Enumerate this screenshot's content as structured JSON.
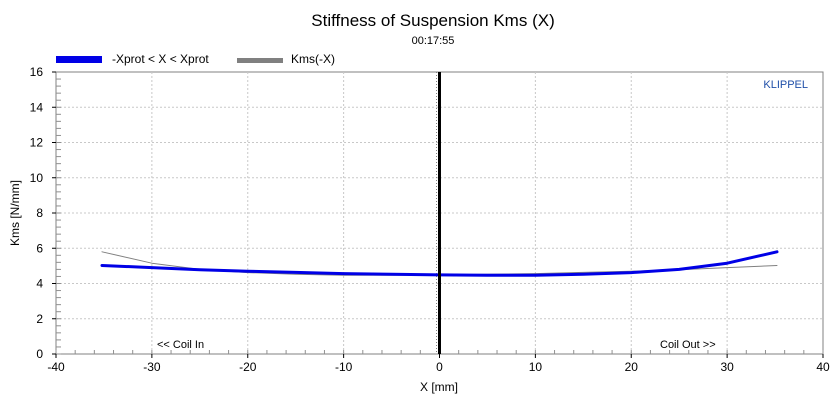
{
  "chart_data": {
    "type": "line",
    "title": "Stiffness of Suspension Kms (X)",
    "subtitle": "00:17:55",
    "xlabel": "X [mm]",
    "ylabel": "Kms [N/mm]",
    "xlim": [
      -40,
      40
    ],
    "ylim": [
      0,
      16
    ],
    "x_ticks": [
      -40,
      -30,
      -20,
      -10,
      0,
      10,
      20,
      30,
      40
    ],
    "y_ticks": [
      0,
      2,
      4,
      6,
      8,
      10,
      12,
      14,
      16
    ],
    "grid": true,
    "legend_position": "top-left",
    "brand": "KLIPPEL",
    "annotations": {
      "left": "<< Coil In",
      "right": "Coil Out >>"
    },
    "series": [
      {
        "name": "-Xprot < X < Xprot",
        "color": "#0000e6",
        "style": "thick",
        "x": [
          -35.2,
          -30,
          -25,
          -20,
          -15,
          -10,
          -5,
          0,
          5,
          10,
          15,
          20,
          25,
          30,
          35.2
        ],
        "y": [
          5.02,
          4.9,
          4.78,
          4.7,
          4.63,
          4.56,
          4.52,
          4.49,
          4.47,
          4.47,
          4.53,
          4.62,
          4.8,
          5.15,
          5.8
        ]
      },
      {
        "name": "Kms(-X)",
        "color": "#808080",
        "style": "thin",
        "x": [
          -35.2,
          -30,
          -25,
          -20,
          -15,
          -10,
          -5,
          0,
          5,
          10,
          15,
          20,
          25,
          30,
          35.2
        ],
        "y": [
          5.8,
          5.15,
          4.8,
          4.62,
          4.53,
          4.47,
          4.47,
          4.49,
          4.52,
          4.56,
          4.63,
          4.7,
          4.78,
          4.9,
          5.02
        ]
      }
    ]
  }
}
